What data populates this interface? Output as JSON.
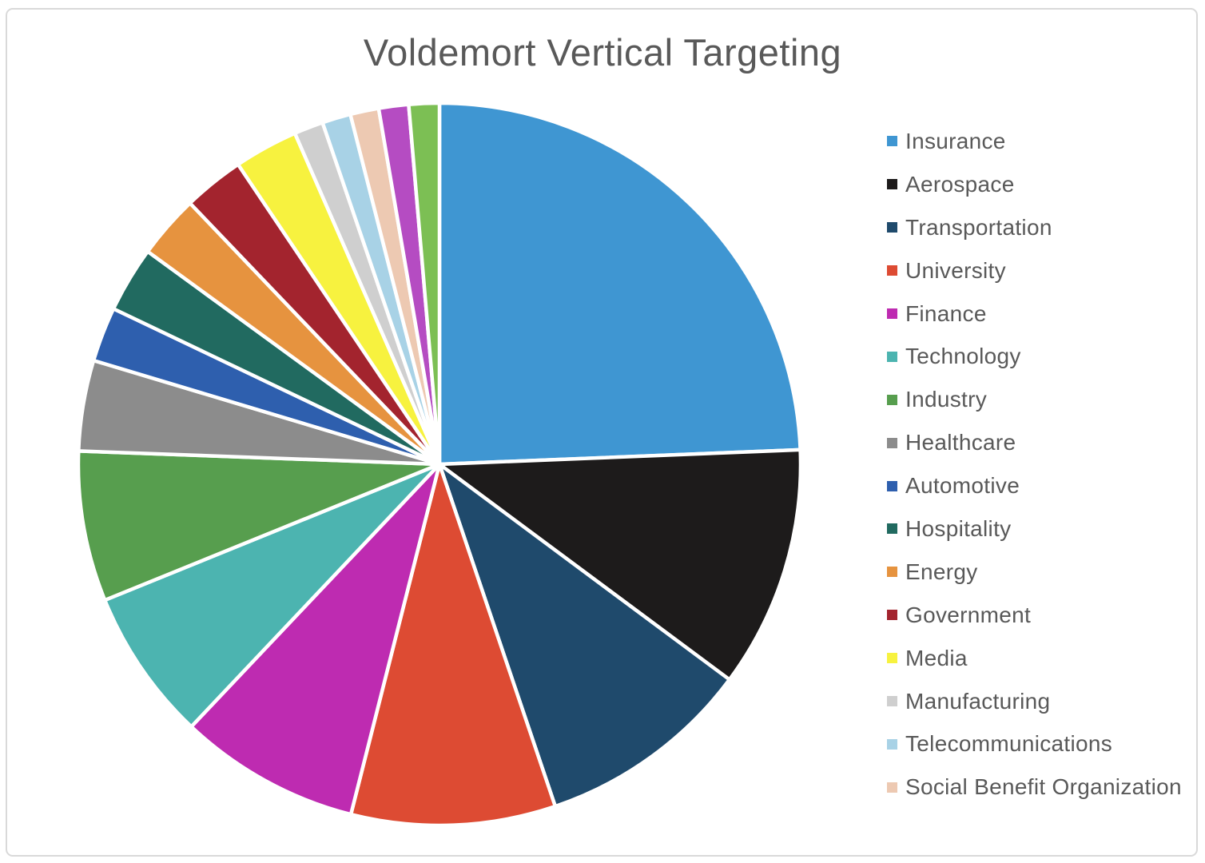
{
  "chart_data": {
    "type": "pie",
    "title": "Voldemort Vertical Targeting",
    "title_color": "#595959",
    "legend_position": "right",
    "start_angle_deg": 0,
    "direction": "clockwise",
    "frame_border_color": "#d9d9d9",
    "slice_separator_color": "#ffffff",
    "slices": [
      {
        "label": "Insurance",
        "angle_deg": 87.7,
        "percent": 24.4,
        "color": "#3f96d2",
        "in_legend": true
      },
      {
        "label": "Aerospace",
        "angle_deg": 38.9,
        "percent": 10.8,
        "color": "#1d1b1b",
        "in_legend": true
      },
      {
        "label": "Transportation",
        "angle_deg": 34.7,
        "percent": 9.6,
        "color": "#1f4a6c",
        "in_legend": true
      },
      {
        "label": "University",
        "angle_deg": 32.9,
        "percent": 9.1,
        "color": "#dd4b33",
        "in_legend": true
      },
      {
        "label": "Finance",
        "angle_deg": 29.2,
        "percent": 8.1,
        "color": "#be2bb1",
        "in_legend": true
      },
      {
        "label": "Technology",
        "angle_deg": 24.5,
        "percent": 6.8,
        "color": "#4cb4b0",
        "in_legend": true
      },
      {
        "label": "Industry",
        "angle_deg": 24.2,
        "percent": 6.7,
        "color": "#579e4e",
        "in_legend": true
      },
      {
        "label": "Healthcare",
        "angle_deg": 14.6,
        "percent": 4.1,
        "color": "#8c8c8c",
        "in_legend": true
      },
      {
        "label": "Automotive",
        "angle_deg": 8.8,
        "percent": 2.4,
        "color": "#2e5fae",
        "in_legend": true
      },
      {
        "label": "Hospitality",
        "angle_deg": 10.6,
        "percent": 2.9,
        "color": "#216a60",
        "in_legend": true
      },
      {
        "label": "Energy",
        "angle_deg": 10.2,
        "percent": 2.8,
        "color": "#e6933f",
        "in_legend": true
      },
      {
        "label": "Government",
        "angle_deg": 9.8,
        "percent": 2.7,
        "color": "#a3242e",
        "in_legend": true
      },
      {
        "label": "Media",
        "angle_deg": 10.3,
        "percent": 2.9,
        "color": "#f7f23f",
        "in_legend": true
      },
      {
        "label": "Manufacturing",
        "angle_deg": 4.7,
        "percent": 1.3,
        "color": "#cfcfcf",
        "in_legend": true
      },
      {
        "label": "Telecommunications",
        "angle_deg": 4.6,
        "percent": 1.3,
        "color": "#a8d2e6",
        "in_legend": true
      },
      {
        "label": "Social Benefit Organization",
        "angle_deg": 4.6,
        "percent": 1.3,
        "color": "#edc9b2",
        "in_legend": true
      },
      {
        "label": "",
        "angle_deg": 4.8,
        "percent": 1.3,
        "color": "#b54cc2",
        "in_legend": false
      },
      {
        "label": "",
        "angle_deg": 4.9,
        "percent": 1.4,
        "color": "#7cbf54",
        "in_legend": false
      }
    ]
  }
}
